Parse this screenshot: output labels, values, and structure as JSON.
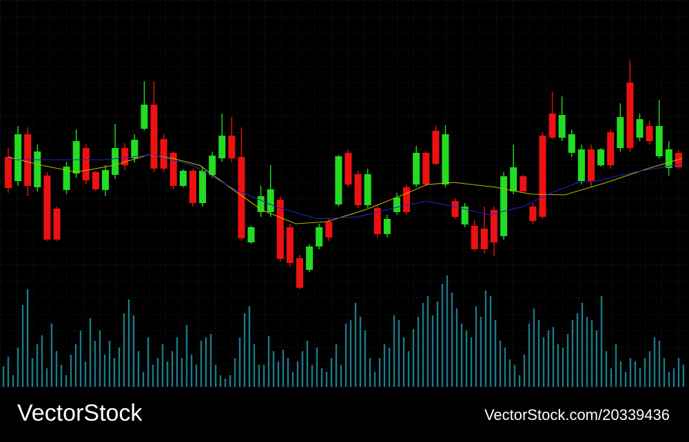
{
  "chart_data": [
    {
      "type": "candlestick",
      "up_color": "#22dd22",
      "down_color": "#ee1111",
      "ylim": [
        60,
        420
      ],
      "open": [
        272,
        237,
        305,
        228,
        245,
        197,
        224,
        248,
        285,
        250,
        224,
        246,
        285,
        270,
        313,
        348,
        298,
        278,
        230,
        252,
        205,
        246,
        270,
        303,
        272,
        148,
        192,
        192,
        210,
        170,
        125,
        108,
        142,
        178,
        203,
        278,
        247,
        202,
        198,
        160,
        192,
        228,
        232,
        278,
        310,
        232,
        208,
        174,
        172,
        168,
        195,
        157,
        222,
        244,
        200,
        303,
        335,
        300,
        278,
        237,
        283,
        260,
        308,
        285,
        380,
        300,
        317,
        273,
        256,
        278
      ],
      "high": [
        285,
        317,
        315,
        290,
        250,
        200,
        265,
        312,
        290,
        252,
        260,
        320,
        292,
        305,
        382,
        382,
        305,
        280,
        254,
        255,
        258,
        280,
        335,
        330,
        315,
        172,
        230,
        260,
        215,
        175,
        130,
        145,
        175,
        182,
        275,
        282,
        252,
        255,
        202,
        188,
        220,
        232,
        288,
        280,
        317,
        318,
        212,
        205,
        180,
        200,
        200,
        250,
        290,
        246,
        205,
        308,
        367,
        360,
        312,
        290,
        290,
        285,
        312,
        350,
        412,
        335,
        325,
        355,
        295,
        282
      ],
      "low": [
        220,
        230,
        215,
        222,
        150,
        150,
        218,
        242,
        232,
        223,
        215,
        240,
        252,
        264,
        310,
        250,
        250,
        225,
        228,
        200,
        200,
        242,
        265,
        265,
        150,
        146,
        185,
        185,
        120,
        112,
        80,
        105,
        138,
        150,
        200,
        228,
        198,
        198,
        155,
        155,
        188,
        188,
        228,
        230,
        260,
        228,
        182,
        170,
        135,
        132,
        128,
        152,
        218,
        220,
        175,
        182,
        298,
        295,
        272,
        232,
        228,
        258,
        255,
        280,
        280,
        295,
        290,
        270,
        245,
        255
      ],
      "close": [
        227,
        305,
        230,
        280,
        152,
        152,
        258,
        295,
        238,
        225,
        253,
        285,
        260,
        297,
        348,
        255,
        255,
        230,
        252,
        205,
        252,
        274,
        303,
        270,
        154,
        170,
        215,
        225,
        124,
        118,
        82,
        142,
        170,
        155,
        273,
        232,
        202,
        247,
        160,
        182,
        213,
        192,
        278,
        232,
        262,
        305,
        185,
        200,
        138,
        138,
        148,
        244,
        257,
        222,
        179,
        185,
        300,
        333,
        305,
        283,
        237,
        283,
        260,
        330,
        285,
        327,
        295,
        317,
        283,
        257
      ],
      "lines": [
        {
          "color": "#c8b400",
          "x": [
            0,
            3.4,
            7,
            10.9,
            14.4,
            16.9,
            19.7,
            22.6,
            26.1,
            29.6,
            32.8,
            36.7,
            40.3,
            43.1,
            45.9,
            50.2,
            53.8,
            57.3,
            61.6,
            65.8,
            69.4
          ],
          "values": [
            272,
            260,
            250,
            260,
            275,
            270,
            260,
            230,
            195,
            175,
            178,
            195,
            215,
            232,
            235,
            228,
            218,
            217,
            235,
            255,
            270
          ]
        },
        {
          "color": "#2424c8",
          "x": [
            0,
            6.2,
            9.8,
            14.8,
            19,
            23.3,
            27.5,
            31.8,
            36,
            40.3,
            43.1,
            45.9,
            49.5,
            53,
            55.9,
            58.7,
            60.8,
            64.4,
            69.4
          ],
          "values": [
            268,
            268,
            268,
            275,
            260,
            225,
            200,
            182,
            185,
            200,
            208,
            200,
            188,
            200,
            220,
            235,
            238,
            250,
            262
          ]
        }
      ]
    },
    {
      "type": "bar",
      "color": "#1b7a88",
      "ylim": [
        0,
        170
      ],
      "values": [
        30,
        44,
        17,
        57,
        119,
        142,
        42,
        62,
        75,
        27,
        92,
        52,
        32,
        17,
        47,
        62,
        82,
        37,
        100,
        67,
        82,
        47,
        67,
        42,
        57,
        107,
        127,
        104,
        52,
        22,
        72,
        32,
        42,
        62,
        37,
        52,
        72,
        42,
        90,
        47,
        32,
        67,
        72,
        77,
        32,
        17,
        12,
        17,
        42,
        72,
        107,
        117,
        62,
        32,
        32,
        74,
        52,
        37,
        54,
        42,
        22,
        37,
        52,
        67,
        32,
        57,
        27,
        22,
        42,
        62,
        32,
        92,
        97,
        122,
        102,
        82,
        42,
        22,
        42,
        62,
        57,
        104,
        97,
        72,
        52,
        84,
        102,
        122,
        132,
        104,
        124,
        150,
        162,
        137,
        114,
        92,
        82,
        72,
        117,
        102,
        140,
        132,
        97,
        67,
        57,
        40,
        32,
        17,
        47,
        92,
        114,
        97,
        72,
        82,
        87,
        62,
        57,
        77,
        97,
        107,
        122,
        102,
        97,
        82,
        132,
        52,
        27,
        62,
        37,
        22,
        42,
        37,
        27,
        42,
        52,
        72,
        67,
        42,
        22,
        27,
        42,
        32
      ]
    }
  ],
  "footer": {
    "brand": "VectorStock",
    "id": "VectorStock.com/20339436"
  }
}
